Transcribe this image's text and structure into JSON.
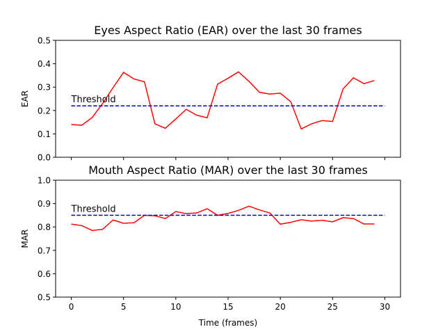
{
  "chart_data": [
    {
      "type": "line",
      "title": "Eyes Aspect Ratio (EAR) over the last 30 frames",
      "xlabel": "",
      "ylabel": "EAR",
      "xlim": [
        -1.5,
        31.5
      ],
      "ylim": [
        0.0,
        0.5
      ],
      "xticks": [
        0,
        5,
        10,
        15,
        20,
        25,
        30
      ],
      "show_xtick_labels": false,
      "yticks": [
        0.0,
        0.1,
        0.2,
        0.3,
        0.4,
        0.5
      ],
      "ytick_labels": [
        "0.0",
        "0.1",
        "0.2",
        "0.3",
        "0.4",
        "0.5"
      ],
      "grid": false,
      "series": [
        {
          "color": "#ff0000",
          "style": "solid",
          "x": [
            0,
            1,
            2,
            3,
            4,
            5,
            6,
            7,
            8,
            9,
            10,
            11,
            12,
            13,
            14,
            15,
            16,
            17,
            18,
            19,
            20,
            21,
            22,
            23,
            24,
            25,
            26,
            27,
            28,
            29
          ],
          "values": [
            0.14,
            0.137,
            0.17,
            0.23,
            0.298,
            0.363,
            0.335,
            0.323,
            0.143,
            0.124,
            0.164,
            0.205,
            0.18,
            0.169,
            0.313,
            0.338,
            0.365,
            0.325,
            0.278,
            0.27,
            0.274,
            0.238,
            0.121,
            0.143,
            0.157,
            0.153,
            0.292,
            0.34,
            0.315,
            0.328
          ]
        },
        {
          "color": "#0000cc",
          "style": "dashed",
          "x": [
            0,
            30
          ],
          "values": [
            0.22,
            0.22
          ]
        }
      ],
      "annotations": [
        {
          "text": "Threshold",
          "x": 0,
          "y": 0.235
        }
      ]
    },
    {
      "type": "line",
      "title": "Mouth Aspect Ratio (MAR) over the last 30 frames",
      "xlabel": "Time (frames)",
      "ylabel": "MAR",
      "xlim": [
        -1.5,
        31.5
      ],
      "ylim": [
        0.5,
        1.0
      ],
      "xticks": [
        0,
        5,
        10,
        15,
        20,
        25,
        30
      ],
      "xtick_labels": [
        "0",
        "5",
        "10",
        "15",
        "20",
        "25",
        "30"
      ],
      "show_xtick_labels": true,
      "yticks": [
        0.5,
        0.6,
        0.7,
        0.8,
        0.9,
        1.0
      ],
      "ytick_labels": [
        "0.5",
        "0.6",
        "0.7",
        "0.8",
        "0.9",
        "1.0"
      ],
      "grid": false,
      "series": [
        {
          "color": "#ff0000",
          "style": "solid",
          "x": [
            0,
            1,
            2,
            3,
            4,
            5,
            6,
            7,
            8,
            9,
            10,
            11,
            12,
            13,
            14,
            15,
            16,
            17,
            18,
            19,
            20,
            21,
            22,
            23,
            24,
            25,
            26,
            27,
            28,
            29
          ],
          "values": [
            0.812,
            0.806,
            0.785,
            0.79,
            0.83,
            0.816,
            0.818,
            0.85,
            0.848,
            0.836,
            0.866,
            0.857,
            0.86,
            0.878,
            0.85,
            0.858,
            0.871,
            0.889,
            0.873,
            0.86,
            0.812,
            0.82,
            0.831,
            0.825,
            0.829,
            0.822,
            0.84,
            0.836,
            0.813,
            0.813
          ]
        },
        {
          "color": "#0000cc",
          "style": "dashed",
          "x": [
            0,
            30
          ],
          "values": [
            0.85,
            0.85
          ]
        }
      ],
      "annotations": [
        {
          "text": "Threshold",
          "x": 0,
          "y": 0.865
        }
      ]
    }
  ]
}
